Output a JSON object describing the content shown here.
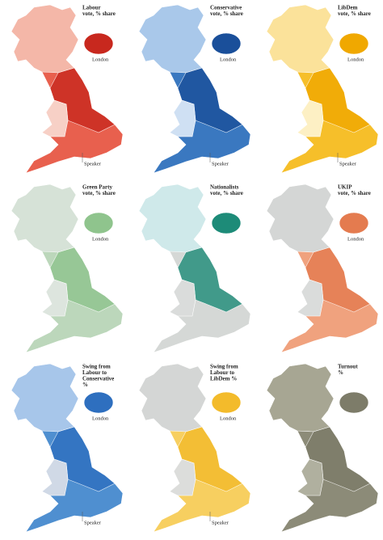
{
  "maps": [
    {
      "title": [
        "Labour",
        "vote, % share"
      ],
      "inset_label": "London",
      "note": "Speaker"
    },
    {
      "title": [
        "Conservative",
        "vote, % share"
      ],
      "inset_label": "London",
      "note": "Speaker"
    },
    {
      "title": [
        "LibDem",
        "vote, % share"
      ],
      "inset_label": "London",
      "note": "Speaker"
    },
    {
      "title": [
        "Green Party",
        "vote, % share"
      ],
      "inset_label": "London"
    },
    {
      "title": [
        "Nationalists",
        "vote, % share"
      ]
    },
    {
      "title": [
        "UKIP",
        "vote, % share"
      ],
      "inset_label": "London"
    },
    {
      "title": [
        "Swing from",
        "Labour to",
        "Conservative",
        "%"
      ],
      "inset_label": "London",
      "note": "Speaker"
    },
    {
      "title": [
        "Swing from",
        "Labour to",
        "LibDem %"
      ],
      "inset_label": "London",
      "note": "Speaker"
    },
    {
      "title": [
        "Turnout",
        "%"
      ]
    }
  ]
}
